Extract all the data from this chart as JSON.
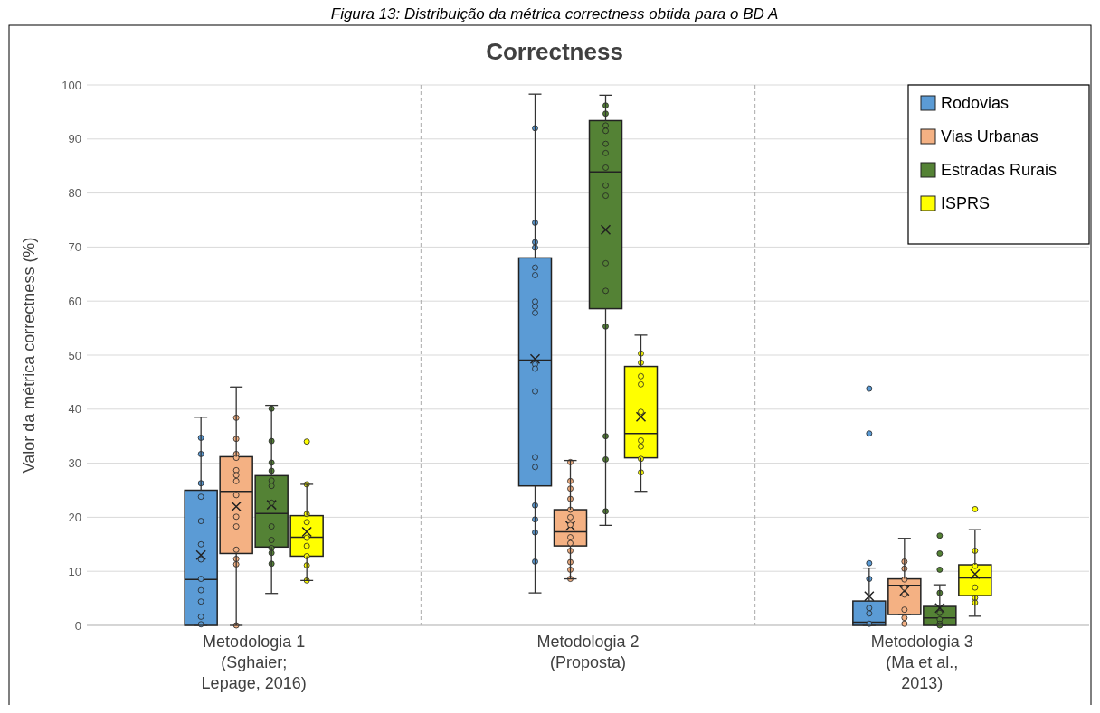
{
  "chart_data": {
    "type": "box",
    "title": "Correctness",
    "annotations": [
      "Figura 13: Distribuição da métrica correctness obtida para o BD A"
    ],
    "ylabel": "Valor da métrica correctness (%)",
    "categories": [
      "Metodologia 1 (Sghaier; Lepage, 2016)",
      "Metodologia 2 (Proposta)",
      "Metodologia 3 (Ma et al., 2013)"
    ],
    "ylim": [
      0,
      100
    ],
    "yticks": [
      0,
      10,
      20,
      30,
      40,
      50,
      60,
      70,
      80,
      90,
      100
    ],
    "grid": "y",
    "legend": "top right",
    "series": [
      {
        "name": "Rodovias",
        "color": "#5b9bd5",
        "boxes": [
          {
            "low": 0,
            "q1": 0,
            "median": 8.5,
            "q3": 25,
            "high": 38.5,
            "mean": 13,
            "outliers": [
              34.7,
              31.7,
              26.3,
              23.8,
              19.3,
              15,
              12.2,
              8.6,
              6.5,
              4.4,
              1.6,
              0.2
            ]
          },
          {
            "low": 6,
            "q1": 25.8,
            "median": 49.1,
            "q3": 68,
            "high": 98.3,
            "mean": 49.3,
            "outliers": [
              92,
              74.5,
              70.9,
              69.9,
              66.2,
              64.8,
              59.9,
              59,
              57.8,
              48.3,
              47.5,
              43.3,
              31.1,
              29.3,
              22.2,
              19.6,
              17.2,
              11.8
            ]
          },
          {
            "low": 0,
            "q1": 0,
            "median": 0.6,
            "q3": 4.5,
            "high": 10.6,
            "mean": 5.4,
            "outliers": [
              43.8,
              35.5,
              11.5,
              8.6,
              3.2,
              2.2,
              0.3
            ]
          }
        ]
      },
      {
        "name": "Vias Urbanas",
        "color": "#f4b183",
        "boxes": [
          {
            "low": 0,
            "q1": 13.3,
            "median": 24.8,
            "q3": 31.2,
            "high": 44.1,
            "mean": 22,
            "outliers": [
              38.4,
              34.5,
              31.7,
              31,
              28.7,
              27.8,
              26.7,
              24.1,
              20.1,
              18.3,
              14,
              12.3,
              11.3,
              0
            ]
          },
          {
            "low": 8.6,
            "q1": 14.7,
            "median": 17.3,
            "q3": 21.4,
            "high": 30.5,
            "mean": 18.4,
            "outliers": [
              30.2,
              26.7,
              25.3,
              23.4,
              21.4,
              20,
              18.6,
              16.3,
              15.2,
              13.8,
              11.7,
              10.3,
              8.6
            ]
          },
          {
            "low": 2,
            "q1": 2,
            "median": 7.4,
            "q3": 8.6,
            "high": 16.1,
            "mean": 6.4,
            "outliers": [
              11.8,
              10.5,
              8.5,
              7,
              5.7,
              2.9,
              1.4,
              0.3
            ]
          }
        ]
      },
      {
        "name": "Estradas Rurais",
        "color": "#548235",
        "boxes": [
          {
            "low": 5.9,
            "q1": 14.5,
            "median": 20.7,
            "q3": 27.7,
            "high": 40.7,
            "mean": 22.3,
            "outliers": [
              40.1,
              34.1,
              30.1,
              28.6,
              26.8,
              25.8,
              22.7,
              18.3,
              15.8,
              14.3,
              13.4,
              11.4
            ]
          },
          {
            "low": 18.5,
            "q1": 58.6,
            "median": 83.9,
            "q3": 93.4,
            "high": 98.1,
            "mean": 73.2,
            "outliers": [
              96.2,
              94.7,
              92.5,
              91.5,
              89.1,
              87.4,
              84.7,
              81.4,
              79.5,
              67,
              61.9,
              55.3,
              35,
              30.7,
              21.1
            ]
          },
          {
            "low": 0,
            "q1": 0,
            "median": 1.4,
            "q3": 3.5,
            "high": 7.5,
            "mean": 3.2,
            "outliers": [
              16.6,
              13.3,
              10.3,
              6,
              2.3,
              1.1,
              0.3,
              0
            ]
          }
        ]
      },
      {
        "name": "ISPRS",
        "color": "#ffff00",
        "boxes": [
          {
            "low": 8.3,
            "q1": 12.8,
            "median": 16.3,
            "q3": 20.3,
            "high": 26.1,
            "mean": 17.3,
            "outliers": [
              34,
              26.1,
              20.6,
              19.1,
              16.2,
              14.7,
              12.8,
              11.1,
              8.3
            ]
          },
          {
            "low": 24.8,
            "q1": 31,
            "median": 35.5,
            "q3": 47.9,
            "high": 53.7,
            "mean": 38.6,
            "outliers": [
              50.3,
              48.6,
              46.1,
              44.6,
              39.5,
              34.2,
              33.1,
              30.8,
              28.3
            ]
          },
          {
            "low": 1.7,
            "q1": 5.5,
            "median": 8.8,
            "q3": 11.2,
            "high": 17.7,
            "mean": 9.5,
            "outliers": [
              21.5,
              13.8,
              11,
              7,
              5.1,
              4.2
            ]
          }
        ]
      }
    ]
  }
}
